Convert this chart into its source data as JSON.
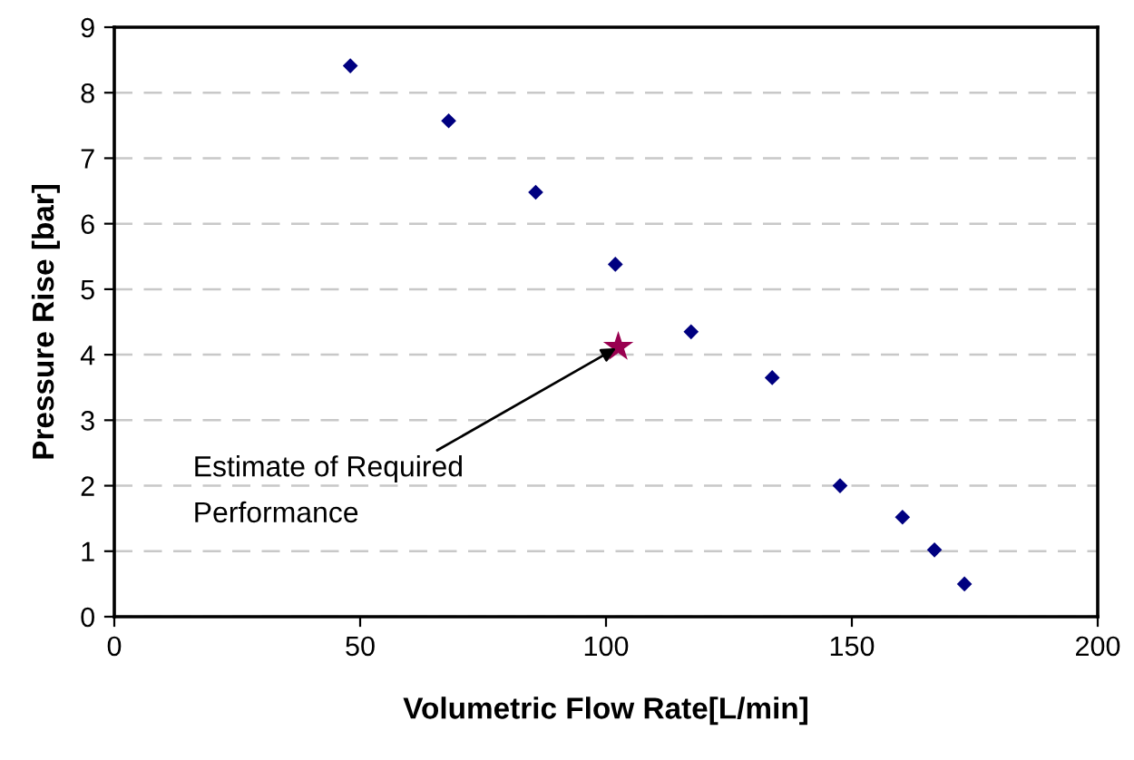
{
  "chart_data": {
    "type": "scatter",
    "xlabel": "Volumetric Flow Rate[L/min]",
    "ylabel": "Pressure Rise [bar]",
    "series": [
      {
        "color": "#000080",
        "marker": "diamond",
        "x": [
          48,
          68,
          85.7,
          101.9,
          117.3,
          133.8,
          147.6,
          160.3,
          166.8,
          172.9
        ],
        "values": [
          8.41,
          7.57,
          6.48,
          5.38,
          4.35,
          3.65,
          2.0,
          1.52,
          1.02,
          0.5
        ]
      },
      {
        "color": "#990050",
        "marker": "star",
        "x": [
          102.5
        ],
        "values": [
          4.12
        ]
      }
    ],
    "annotations": [
      {
        "text": "Estimate of Required\nPerformance",
        "x": 102.5,
        "y": 4.12
      }
    ],
    "xlim": [
      0,
      200
    ],
    "xticks": [
      0,
      50,
      100,
      150,
      200
    ],
    "ylim": [
      0,
      9
    ],
    "yticks": [
      0,
      1,
      2,
      3,
      4,
      5,
      6,
      7,
      8,
      9
    ],
    "grid": "y"
  }
}
